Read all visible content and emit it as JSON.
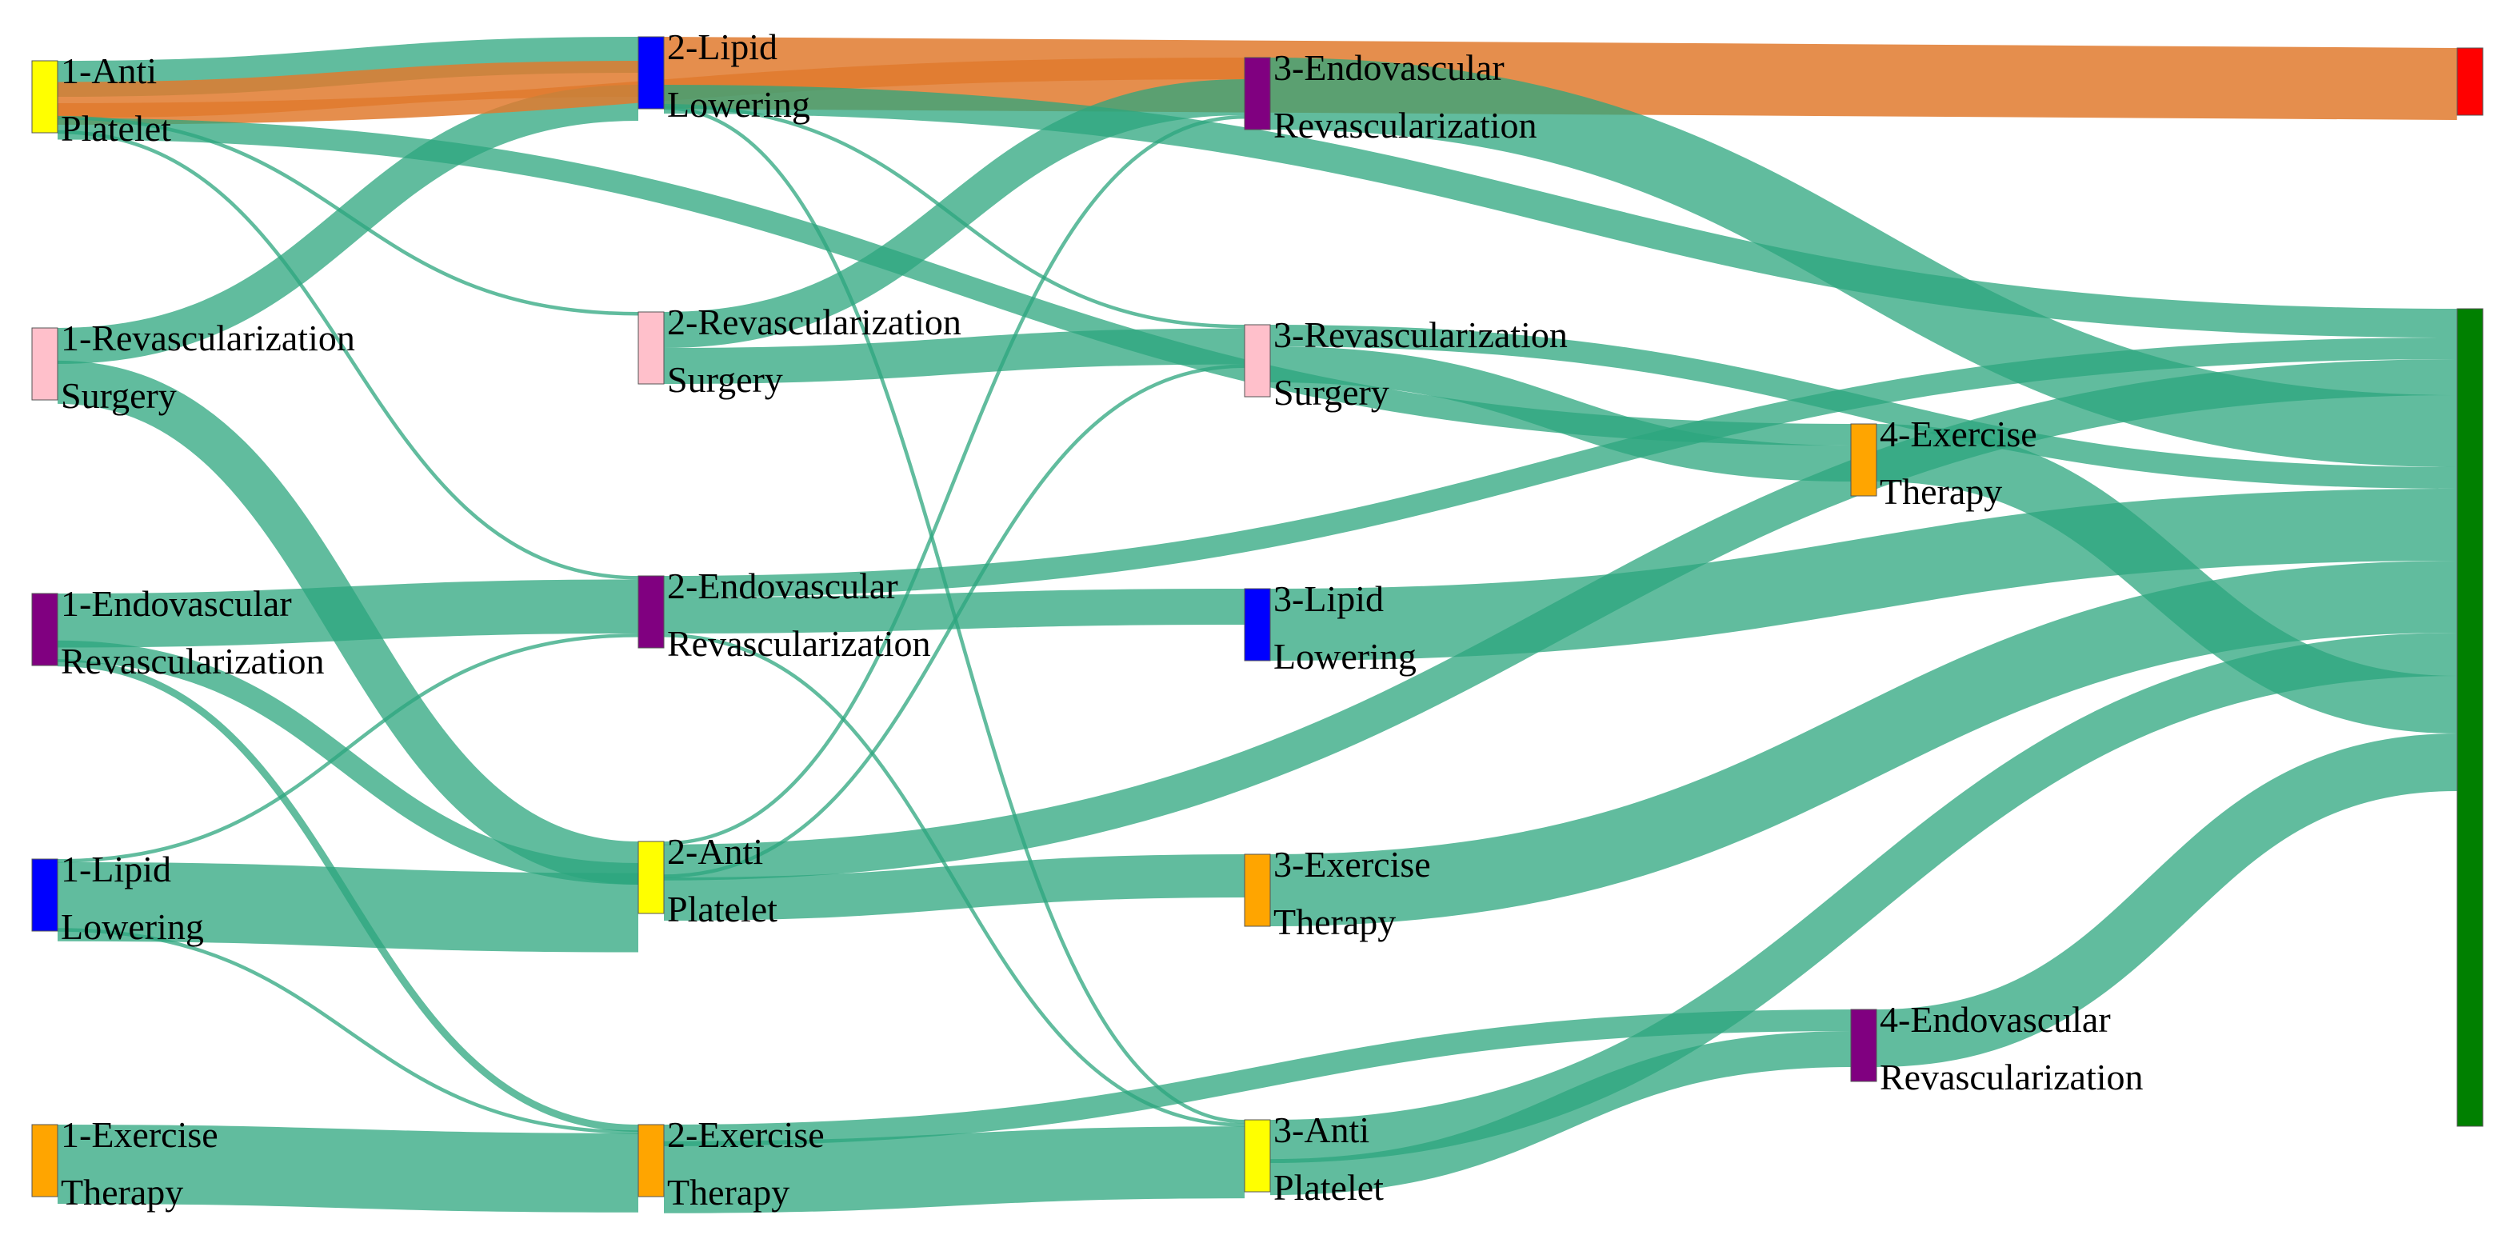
{
  "diagram": {
    "type": "sankey",
    "colors": {
      "link_default": "#2ca67e",
      "link_highlight": "#e07a2e",
      "link_default_opacity": 0.75,
      "link_highlight_opacity": 0.85
    },
    "nodes": [
      {
        "id": "1-Anti Platelet",
        "lines": [
          "1-Anti",
          "Platelet"
        ],
        "stage": 1,
        "color": "#ffff00"
      },
      {
        "id": "1-Revascularization Surgery",
        "lines": [
          "1-Revascularization",
          "Surgery"
        ],
        "stage": 1,
        "color": "#ffc0cb"
      },
      {
        "id": "1-Endovascular Revascularization",
        "lines": [
          "1-Endovascular",
          "Revascularization"
        ],
        "stage": 1,
        "color": "#800080"
      },
      {
        "id": "1-Lipid Lowering",
        "lines": [
          "1-Lipid",
          "Lowering"
        ],
        "stage": 1,
        "color": "#0000ff"
      },
      {
        "id": "1-Exercise Therapy",
        "lines": [
          "1-Exercise",
          "Therapy"
        ],
        "stage": 1,
        "color": "#ffa500"
      },
      {
        "id": "2-Lipid Lowering",
        "lines": [
          "2-Lipid",
          "Lowering"
        ],
        "stage": 2,
        "color": "#0000ff"
      },
      {
        "id": "2-Revascularization Surgery",
        "lines": [
          "2-Revascularization",
          "Surgery"
        ],
        "stage": 2,
        "color": "#ffc0cb"
      },
      {
        "id": "2-Endovascular Revascularization",
        "lines": [
          "2-Endovascular",
          "Revascularization"
        ],
        "stage": 2,
        "color": "#800080"
      },
      {
        "id": "2-Anti Platelet",
        "lines": [
          "2-Anti",
          "Platelet"
        ],
        "stage": 2,
        "color": "#ffff00"
      },
      {
        "id": "2-Exercise Therapy",
        "lines": [
          "2-Exercise",
          "Therapy"
        ],
        "stage": 2,
        "color": "#ffa500"
      },
      {
        "id": "3-Endovascular Revascularization",
        "lines": [
          "3-Endovascular",
          "Revascularization"
        ],
        "stage": 3,
        "color": "#800080"
      },
      {
        "id": "3-Revascularization Surgery",
        "lines": [
          "3-Revascularization",
          "Surgery"
        ],
        "stage": 3,
        "color": "#ffc0cb"
      },
      {
        "id": "3-Lipid Lowering",
        "lines": [
          "3-Lipid",
          "Lowering"
        ],
        "stage": 3,
        "color": "#0000ff"
      },
      {
        "id": "3-Exercise Therapy",
        "lines": [
          "3-Exercise",
          "Therapy"
        ],
        "stage": 3,
        "color": "#ffa500"
      },
      {
        "id": "3-Anti Platelet",
        "lines": [
          "3-Anti",
          "Platelet"
        ],
        "stage": 3,
        "color": "#ffff00"
      },
      {
        "id": "4-Exercise Therapy",
        "lines": [
          "4-Exercise",
          "Therapy"
        ],
        "stage": 4,
        "color": "#ffa500"
      },
      {
        "id": "4-Endovascular Revascularization",
        "lines": [
          "4-Endovascular",
          "Revascularization"
        ],
        "stage": 4,
        "color": "#800080"
      },
      {
        "id": "end-red",
        "lines": [],
        "stage": 5,
        "color": "#ff0000"
      },
      {
        "id": "end-green",
        "lines": [],
        "stage": 5,
        "color": "#008000"
      }
    ],
    "links": [
      {
        "source": "1-Anti Platelet",
        "target": "2-Lipid Lowering",
        "value": 10,
        "highlight": false
      },
      {
        "source": "1-Anti Platelet",
        "target": "2-Lipid Lowering",
        "value": 10,
        "highlight": true
      },
      {
        "source": "1-Anti Platelet",
        "target": "3-Endovascular Revascularization",
        "value": 6,
        "highlight": true
      },
      {
        "source": "1-Anti Platelet",
        "target": "4-Exercise Therapy",
        "value": 6,
        "highlight": false
      },
      {
        "source": "1-Anti Platelet",
        "target": "2-Revascularization Surgery",
        "value": 1,
        "highlight": false
      },
      {
        "source": "1-Anti Platelet",
        "target": "2-Endovascular Revascularization",
        "value": 1,
        "highlight": false
      },
      {
        "source": "1-Revascularization Surgery",
        "target": "2-Lipid Lowering",
        "value": 10,
        "highlight": false
      },
      {
        "source": "1-Revascularization Surgery",
        "target": "2-Anti Platelet",
        "value": 12,
        "highlight": false
      },
      {
        "source": "1-Endovascular Revascularization",
        "target": "2-Endovascular Revascularization",
        "value": 15,
        "highlight": false
      },
      {
        "source": "1-Endovascular Revascularization",
        "target": "2-Anti Platelet",
        "value": 6,
        "highlight": false
      },
      {
        "source": "1-Endovascular Revascularization",
        "target": "2-Exercise Therapy",
        "value": 2,
        "highlight": false
      },
      {
        "source": "1-Lipid Lowering",
        "target": "2-Anti Platelet",
        "value": 22,
        "highlight": false
      },
      {
        "source": "1-Lipid Lowering",
        "target": "2-Endovascular Revascularization",
        "value": 1,
        "highlight": false
      },
      {
        "source": "1-Lipid Lowering",
        "target": "2-Exercise Therapy",
        "value": 1,
        "highlight": false
      },
      {
        "source": "1-Exercise Therapy",
        "target": "2-Exercise Therapy",
        "value": 22,
        "highlight": false
      },
      {
        "source": "2-Lipid Lowering",
        "target": "end-red",
        "value": 20,
        "highlight": true
      },
      {
        "source": "2-Lipid Lowering",
        "target": "end-green",
        "value": 8,
        "highlight": false
      },
      {
        "source": "2-Lipid Lowering",
        "target": "3-Revascularization Surgery",
        "value": 1,
        "highlight": false
      },
      {
        "source": "2-Lipid Lowering",
        "target": "3-Anti Platelet",
        "value": 1,
        "highlight": false
      },
      {
        "source": "2-Revascularization Surgery",
        "target": "3-Revascularization Surgery",
        "value": 10,
        "highlight": false
      },
      {
        "source": "2-Revascularization Surgery",
        "target": "3-Endovascular Revascularization",
        "value": 10,
        "highlight": false
      },
      {
        "source": "2-Endovascular Revascularization",
        "target": "3-Lipid Lowering",
        "value": 10,
        "highlight": false
      },
      {
        "source": "2-Endovascular Revascularization",
        "target": "end-green",
        "value": 6,
        "highlight": false
      },
      {
        "source": "2-Endovascular Revascularization",
        "target": "3-Anti Platelet",
        "value": 1,
        "highlight": false
      },
      {
        "source": "2-Anti Platelet",
        "target": "3-Exercise Therapy",
        "value": 12,
        "highlight": false
      },
      {
        "source": "2-Anti Platelet",
        "target": "end-green",
        "value": 10,
        "highlight": false
      },
      {
        "source": "2-Anti Platelet",
        "target": "3-Revascularization Surgery",
        "value": 1,
        "highlight": false
      },
      {
        "source": "2-Anti Platelet",
        "target": "3-Endovascular Revascularization",
        "value": 1,
        "highlight": false
      },
      {
        "source": "2-Exercise Therapy",
        "target": "3-Anti Platelet",
        "value": 20,
        "highlight": false
      },
      {
        "source": "2-Exercise Therapy",
        "target": "4-Endovascular Revascularization",
        "value": 6,
        "highlight": false
      },
      {
        "source": "3-Endovascular Revascularization",
        "target": "end-green",
        "value": 20,
        "highlight": false
      },
      {
        "source": "3-Revascularization Surgery",
        "target": "4-Exercise Therapy",
        "value": 10,
        "highlight": false
      },
      {
        "source": "3-Revascularization Surgery",
        "target": "end-green",
        "value": 6,
        "highlight": false
      },
      {
        "source": "3-Lipid Lowering",
        "target": "end-green",
        "value": 20,
        "highlight": false
      },
      {
        "source": "3-Exercise Therapy",
        "target": "end-green",
        "value": 20,
        "highlight": false
      },
      {
        "source": "3-Anti Platelet",
        "target": "4-Endovascular Revascularization",
        "value": 10,
        "highlight": false
      },
      {
        "source": "3-Anti Platelet",
        "target": "end-green",
        "value": 12,
        "highlight": false
      },
      {
        "source": "4-Exercise Therapy",
        "target": "end-green",
        "value": 16,
        "highlight": false
      },
      {
        "source": "4-Endovascular Revascularization",
        "target": "end-green",
        "value": 16,
        "highlight": false
      }
    ]
  }
}
